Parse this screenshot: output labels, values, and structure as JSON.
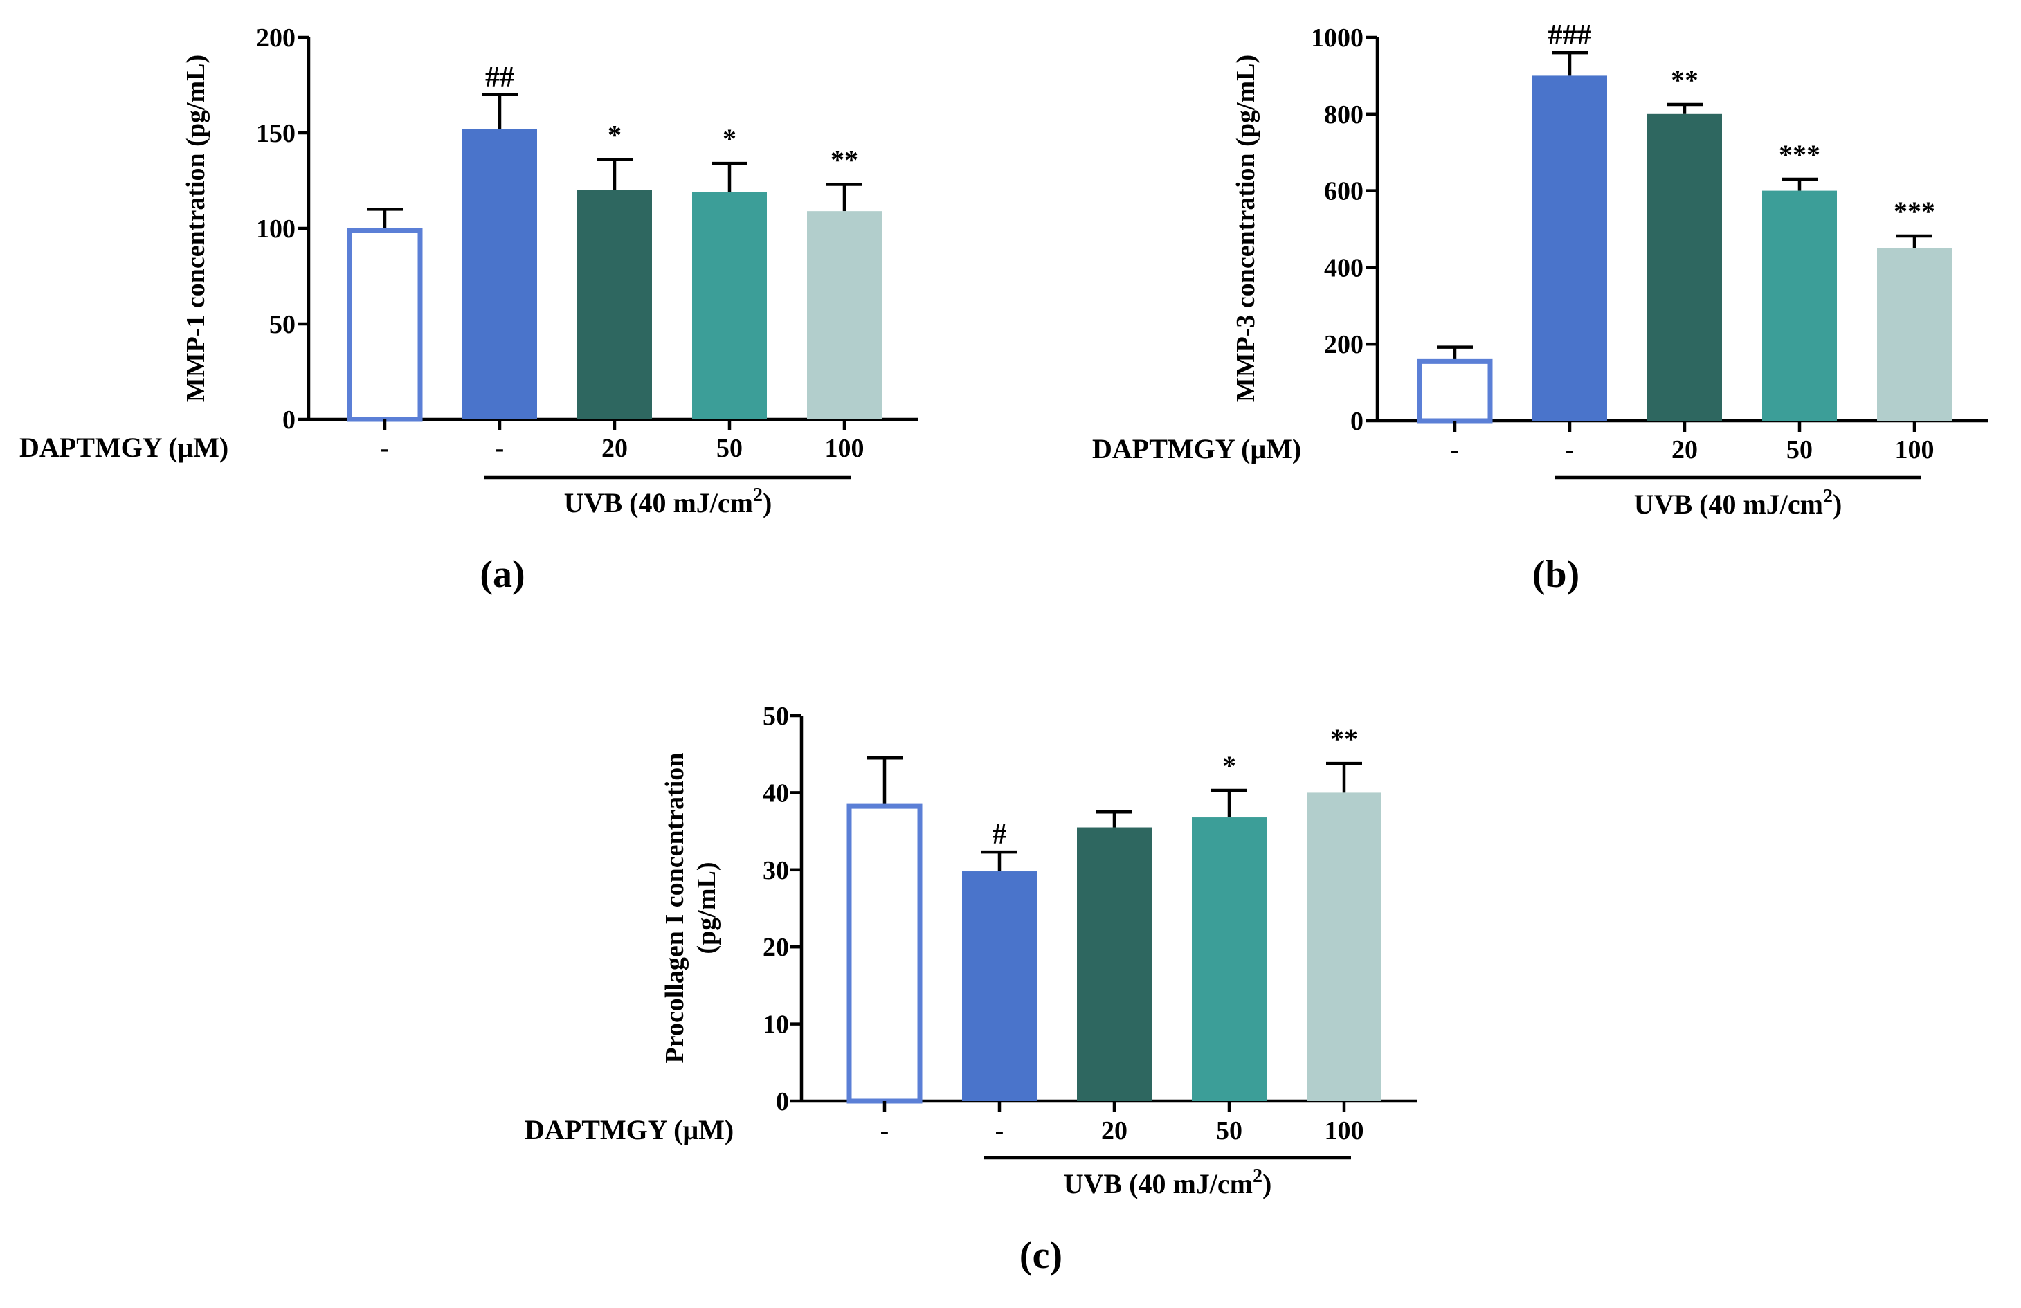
{
  "charts": [
    {
      "panel_label": "(a)",
      "ylabel": "MMP-1 concentration (pg/mL)",
      "ylabel_lines": [
        "MMP-1 concentration (pg/mL)"
      ],
      "yticks": [
        "0",
        "50",
        "100",
        "150",
        "200"
      ],
      "treatment_label": "DAPTMGY (μM)",
      "uvb_label": "UVB (40 mJ/cm",
      "uvb_sup": "2",
      "uvb_close": ")"
    },
    {
      "panel_label": "(b)",
      "ylabel": "MMP-3 concentration (pg/mL)",
      "ylabel_lines": [
        "MMP-3 concentration (pg/mL)"
      ],
      "yticks": [
        "0",
        "200",
        "400",
        "600",
        "800",
        "1000"
      ],
      "treatment_label": "DAPTMGY (μM)",
      "uvb_label": "UVB (40 mJ/cm",
      "uvb_sup": "2",
      "uvb_close": ")"
    },
    {
      "panel_label": "(c)",
      "ylabel": "Procollagen I concentration (pg/mL)",
      "ylabel_lines": [
        "Procollagen I concentration",
        "(pg/mL)"
      ],
      "yticks": [
        "0",
        "10",
        "20",
        "30",
        "40",
        "50"
      ],
      "treatment_label": "DAPTMGY (μM)",
      "uvb_label": "UVB (40 mJ/cm",
      "uvb_sup": "2",
      "uvb_close": ")"
    }
  ],
  "colors": {
    "control_outline": "#5b7fd6",
    "uvb_only": "#4a74cb",
    "dose_20": "#2e6760",
    "dose_50": "#3c9e98",
    "dose_100": "#b2cecc"
  },
  "chart_data": [
    {
      "type": "bar",
      "categories": [
        "-",
        "-",
        "20",
        "50",
        "100"
      ],
      "values": [
        100,
        152,
        120,
        119,
        109
      ],
      "errors": [
        10,
        18,
        16,
        15,
        14
      ],
      "annotations": [
        "",
        "##",
        "*",
        "*",
        "**"
      ],
      "ylabel": "MMP-1 concentration (pg/mL)",
      "xlabel": "DAPTMGY (μM)",
      "ylim": [
        0,
        200
      ],
      "grid": false,
      "legend": "none"
    },
    {
      "type": "bar",
      "categories": [
        "-",
        "-",
        "20",
        "50",
        "100"
      ],
      "values": [
        160,
        900,
        800,
        600,
        450
      ],
      "errors": [
        32,
        60,
        25,
        30,
        32
      ],
      "annotations": [
        "",
        "###",
        "**",
        "***",
        "***"
      ],
      "ylabel": "MMP-3 concentration (pg/mL)",
      "xlabel": "DAPTMGY (μM)",
      "ylim": [
        0,
        1000
      ],
      "grid": false,
      "legend": "none"
    },
    {
      "type": "bar",
      "categories": [
        "-",
        "-",
        "20",
        "50",
        "100"
      ],
      "values": [
        38.5,
        29.8,
        35.5,
        36.8,
        40.0
      ],
      "errors": [
        6.0,
        2.5,
        2.0,
        3.5,
        3.8
      ],
      "annotations": [
        "",
        "#",
        "",
        "*",
        "**"
      ],
      "ylabel": "Procollagen I concentration (pg/mL)",
      "xlabel": "DAPTMGY (μM)",
      "ylim": [
        0,
        50
      ],
      "grid": false,
      "legend": "none"
    }
  ]
}
